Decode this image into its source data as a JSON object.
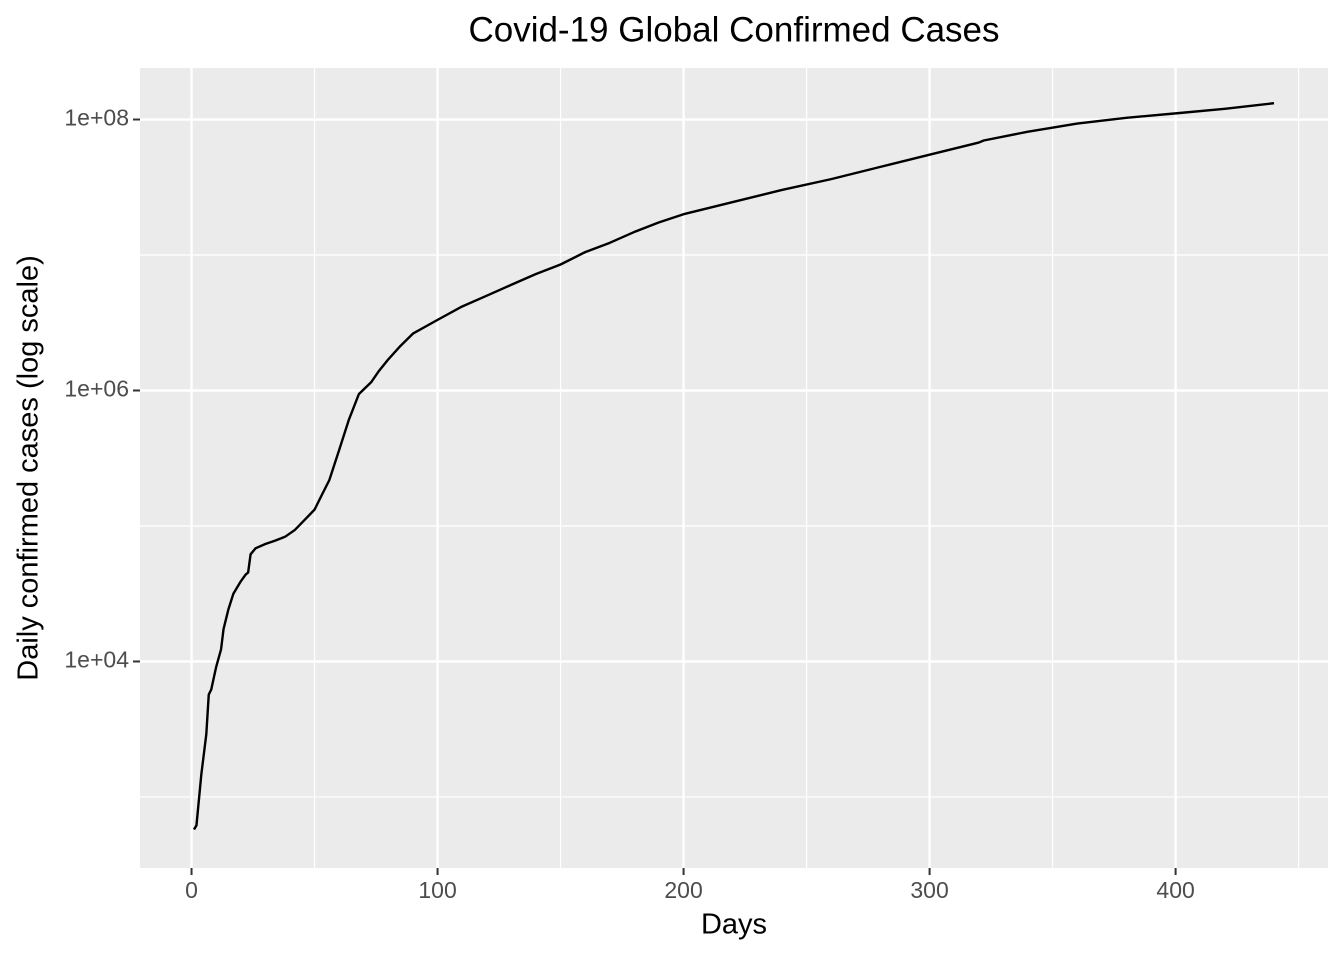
{
  "chart_data": {
    "type": "line",
    "title": "Covid-19 Global Confirmed Cases",
    "x_label": "Days",
    "y_label": "Daily confirmed cases  (log scale)",
    "log_y": true,
    "grid": true,
    "panel_color": "#ebebeb",
    "xlim": [
      -20.95,
      461.95
    ],
    "ylim": [
      299,
      240000000
    ],
    "xticks": [
      0,
      100,
      200,
      300,
      400
    ],
    "xminor": [
      50,
      150,
      250,
      350,
      450
    ],
    "yticks": [
      {
        "value": 10000,
        "label": "1e+04"
      },
      {
        "value": 1000000,
        "label": "1e+06"
      },
      {
        "value": 100000000,
        "label": "1e+08"
      }
    ],
    "yminor": [
      1000,
      100000,
      10000000
    ],
    "x": [
      1,
      2,
      4,
      6,
      7,
      8,
      10,
      12,
      13,
      15,
      17,
      20,
      22,
      23,
      24,
      26,
      30,
      34,
      38,
      42,
      46,
      50,
      53,
      56,
      60,
      64,
      68,
      73,
      76,
      80,
      85,
      90,
      100,
      110,
      120,
      130,
      140,
      150,
      160,
      170,
      180,
      190,
      200,
      220,
      240,
      260,
      280,
      300,
      320,
      322,
      340,
      360,
      380,
      400,
      420,
      440
    ],
    "series": [
      {
        "color": "#000000",
        "values": [
          575,
          617,
          1480,
          2900,
          5700,
          6200,
          9100,
          12300,
          17300,
          24300,
          31600,
          39000,
          43800,
          45300,
          61800,
          68400,
          73600,
          78000,
          83200,
          93500,
          111000,
          132000,
          170000,
          218000,
          364000,
          612000,
          940000,
          1150000,
          1380000,
          1700000,
          2140000,
          2630000,
          3320000,
          4170000,
          5010000,
          6030000,
          7240000,
          8510000,
          10500000,
          12300000,
          14800000,
          17400000,
          20000000,
          24600000,
          30200000,
          36300000,
          44700000,
          55000000,
          67600000,
          70000000,
          81300000,
          93300000,
          103000000,
          111000000,
          120000000,
          132000000
        ]
      }
    ]
  }
}
